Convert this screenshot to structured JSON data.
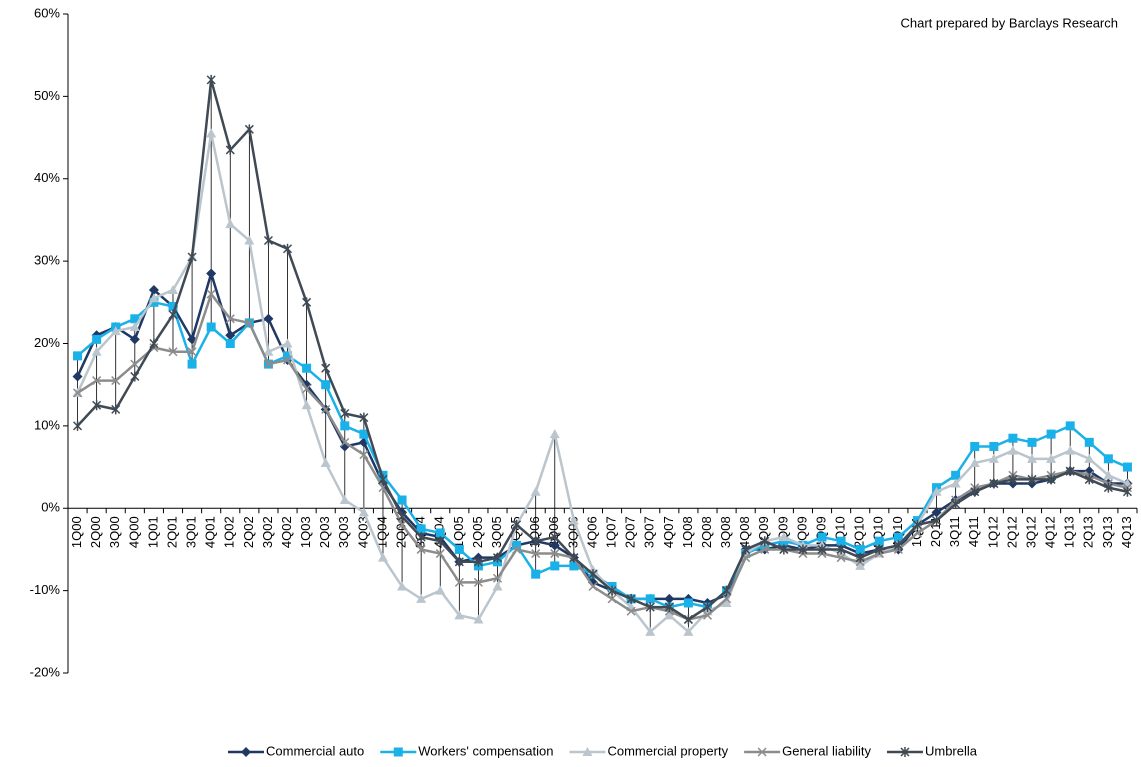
{
  "chart_data": {
    "type": "line",
    "annotation": "Chart prepared by Barclays Research",
    "categories": [
      "1Q00",
      "2Q00",
      "3Q00",
      "4Q00",
      "1Q01",
      "2Q01",
      "3Q01",
      "4Q01",
      "1Q02",
      "2Q02",
      "3Q02",
      "4Q02",
      "1Q03",
      "2Q03",
      "3Q03",
      "4Q03",
      "1Q04",
      "2Q04",
      "3Q04",
      "4Q04",
      "1Q05",
      "2Q05",
      "3Q05",
      "4Q05",
      "1Q06",
      "2Q06",
      "3Q06",
      "4Q06",
      "1Q07",
      "2Q07",
      "3Q07",
      "4Q07",
      "1Q08",
      "2Q08",
      "3Q08",
      "4Q08",
      "1Q09",
      "2Q09",
      "3Q09",
      "4Q09",
      "1Q10",
      "2Q10",
      "3Q10",
      "4Q10",
      "1Q11",
      "2Q11",
      "3Q11",
      "4Q11",
      "1Q12",
      "2Q12",
      "3Q12",
      "4Q12",
      "1Q13",
      "2Q13",
      "3Q13",
      "4Q13"
    ],
    "ylim": [
      -20,
      60
    ],
    "yticks": [
      {
        "value": -20,
        "label": "-20%"
      },
      {
        "value": -10,
        "label": "-10%"
      },
      {
        "value": 0,
        "label": "0%"
      },
      {
        "value": 10,
        "label": "10%"
      },
      {
        "value": 20,
        "label": "20%"
      },
      {
        "value": 30,
        "label": "30%"
      },
      {
        "value": 40,
        "label": "40%"
      },
      {
        "value": 50,
        "label": "50%"
      },
      {
        "value": 60,
        "label": "60%"
      }
    ],
    "grid": false,
    "hi_lo_lines": true,
    "legend": "bottom",
    "series": [
      {
        "name": "Commercial auto",
        "color": "#1f3864",
        "marker": "diamond",
        "values": [
          16,
          21,
          22,
          20.5,
          26.5,
          24.5,
          20.5,
          28.5,
          21,
          22.5,
          23,
          18,
          15,
          12,
          7.5,
          8,
          3,
          -0.5,
          -3,
          -3.5,
          -6.5,
          -6,
          -6,
          -4.5,
          -4,
          -4.5,
          -6,
          -9,
          -10,
          -11,
          -11,
          -11,
          -11,
          -11.5,
          -10.5,
          -5,
          -5,
          -4.5,
          -5,
          -4.5,
          -4.5,
          -5.5,
          -5,
          -5,
          -2,
          -0.5,
          1,
          2,
          3,
          3,
          3,
          3.5,
          4.5,
          4.5,
          3,
          3
        ]
      },
      {
        "name": "Workers' compensation",
        "color": "#1ab0e8",
        "marker": "square",
        "values": [
          18.5,
          20.5,
          22,
          23,
          25,
          24.5,
          17.5,
          22,
          20,
          22.5,
          17.5,
          18.5,
          17,
          15,
          10,
          9,
          4,
          1,
          -2.5,
          -3,
          -5,
          -7,
          -6.5,
          -4.5,
          -8,
          -7,
          -7,
          -8,
          -9.5,
          -11,
          -11,
          -12,
          -11.5,
          -12,
          -10,
          -5.5,
          -4.5,
          -4,
          -4.5,
          -3.5,
          -4,
          -5,
          -4,
          -3.5,
          -1.5,
          2.5,
          4,
          7.5,
          7.5,
          8.5,
          8,
          9,
          10,
          8,
          6,
          5
        ]
      },
      {
        "name": "Commercial property",
        "color": "#bac5cd",
        "marker": "triangle",
        "values": [
          14,
          19,
          21.5,
          22,
          25.5,
          26.5,
          30.5,
          45.5,
          34.5,
          32.5,
          19,
          20,
          12.5,
          5.5,
          1,
          -0.5,
          -6,
          -9.5,
          -11,
          -10,
          -13,
          -13.5,
          -9.5,
          -2,
          2,
          9,
          -1.5,
          -7.5,
          -10,
          -12,
          -15,
          -13,
          -15,
          -12.5,
          -11.5,
          -5.5,
          -4,
          -3.5,
          -4.5,
          -4.5,
          -5.5,
          -7,
          -5.5,
          -4.5,
          -2,
          2,
          3,
          5.5,
          6,
          7,
          6,
          6,
          7,
          6,
          4,
          3
        ]
      },
      {
        "name": "General liability",
        "color": "#8c8c8c",
        "marker": "x",
        "values": [
          14,
          15.5,
          15.5,
          17.5,
          19.5,
          19,
          19,
          26,
          23,
          22.5,
          17.5,
          18,
          14.5,
          12,
          8,
          6.5,
          2.5,
          -2,
          -5,
          -5.5,
          -9,
          -9,
          -8.5,
          -5,
          -5.5,
          -5.5,
          -6,
          -9.5,
          -11,
          -12.5,
          -12,
          -12.5,
          -13.5,
          -13,
          -11,
          -6,
          -5,
          -5,
          -5.5,
          -5.5,
          -6,
          -6.5,
          -5.5,
          -5,
          -3,
          -1.5,
          1,
          2.5,
          3,
          4,
          3.5,
          4,
          4.5,
          4,
          3,
          2.5
        ]
      },
      {
        "name": "Umbrella",
        "color": "#404a54",
        "marker": "star",
        "values": [
          10,
          12.5,
          12,
          16,
          20,
          23.5,
          30.5,
          52,
          43.5,
          46,
          32.5,
          31.5,
          25,
          17,
          11.5,
          11,
          3.5,
          -1,
          -3.5,
          -4,
          -6.5,
          -6.5,
          -6,
          -2,
          -4,
          -3.5,
          -6,
          -8,
          -10,
          -11,
          -12,
          -12,
          -13.5,
          -12,
          -10,
          -5,
          -4,
          -5,
          -5,
          -5,
          -5,
          -6,
          -5,
          -4.5,
          -2,
          -1.5,
          0.5,
          2,
          3,
          3.5,
          3.5,
          3.5,
          4.5,
          3.5,
          2.5,
          2
        ]
      }
    ]
  }
}
